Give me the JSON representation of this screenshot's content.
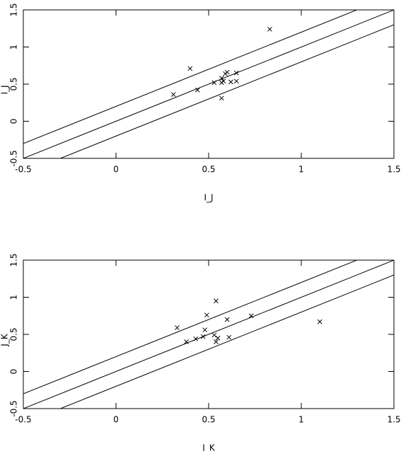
{
  "chart_data": [
    {
      "type": "scatter",
      "xlabel": "I_J",
      "ylabel": "I_J",
      "x": [
        0.83,
        0.4,
        0.31,
        0.44,
        0.53,
        0.57,
        0.59,
        0.6,
        0.57,
        0.58,
        0.62,
        0.65,
        0.65,
        0.57
      ],
      "y": [
        1.24,
        0.71,
        0.36,
        0.42,
        0.52,
        0.58,
        0.64,
        0.66,
        0.52,
        0.54,
        0.53,
        0.65,
        0.54,
        0.31
      ],
      "color": "#000000",
      "lines": [
        {
          "slope": 1,
          "intercept": 0.2
        },
        {
          "slope": 1,
          "intercept": 0
        },
        {
          "slope": 1,
          "intercept": -0.2
        }
      ],
      "xlim": [
        -0.5,
        1.5
      ],
      "ylim": [
        -0.5,
        1.5
      ],
      "xticks": [
        -0.5,
        0,
        0.5,
        1,
        1.5
      ],
      "yticks": [
        -0.5,
        0,
        0.5,
        1,
        1.5
      ]
    },
    {
      "type": "scatter",
      "xlabel": "J_K",
      "ylabel": "J_K",
      "x": [
        0.54,
        0.49,
        0.33,
        0.48,
        0.6,
        0.73,
        1.1,
        0.38,
        0.43,
        0.47,
        0.53,
        0.55,
        0.54,
        0.61
      ],
      "y": [
        0.95,
        0.76,
        0.59,
        0.56,
        0.7,
        0.75,
        0.67,
        0.4,
        0.44,
        0.47,
        0.49,
        0.45,
        0.4,
        0.46
      ],
      "color": "#000000",
      "lines": [
        {
          "slope": 1,
          "intercept": 0.2
        },
        {
          "slope": 1,
          "intercept": 0
        },
        {
          "slope": 1,
          "intercept": -0.2
        }
      ],
      "xlim": [
        -0.5,
        1.5
      ],
      "ylim": [
        -0.5,
        1.5
      ],
      "xticks": [
        -0.5,
        0,
        0.5,
        1,
        1.5
      ],
      "yticks": [
        -0.5,
        0,
        0.5,
        1,
        1.5
      ]
    }
  ]
}
